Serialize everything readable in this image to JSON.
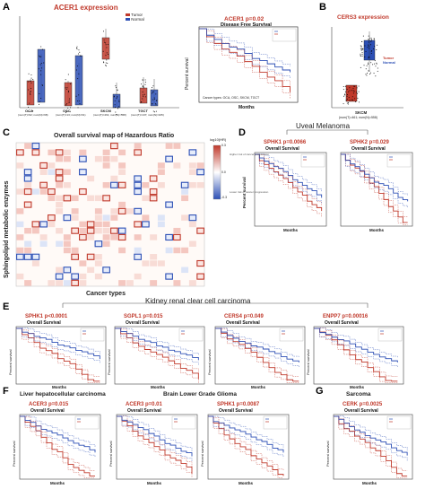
{
  "panels": {
    "A": {
      "letter": "A",
      "box_title": "ACER1 expression",
      "legend": {
        "tumor": "Tumor",
        "normal": "Normal"
      },
      "groups": [
        {
          "name": "OCA",
          "n": "(num(T)=92; num(N)=98)"
        },
        {
          "name": "OSC",
          "n": "(num(T)=13; num(N)=61)"
        },
        {
          "name": "SKCM",
          "n": "(num(T)=461; num(N)=558)"
        },
        {
          "name": "TGCT",
          "n": "(num(T)=137; num(N)=165)"
        }
      ],
      "km_title": "ACER1 p=0.02",
      "km_sub": "Disease Free Survival",
      "km_ylabel": "Percent survival",
      "km_xlabel": "Months",
      "km_note": "Cancer types: OCA, OSC, SKCM, TGCT"
    },
    "B": {
      "letter": "B",
      "title": "CERS3 expression",
      "legend": {
        "tumor": "Tumor",
        "normal": "Normal"
      },
      "group": "SKCM",
      "n": "(num(T)=461; num(N)=558)"
    },
    "C": {
      "letter": "C",
      "title": "Overall survival map of Hazardous Ratio",
      "ylabel": "Sphingolipid metabolic enzymes",
      "xlabel": "Cancer types",
      "legend_title": "log10(HR)",
      "legend_high": "Higher risk of cancer progression",
      "legend_low": "Lower risk of cancer progression",
      "legend_ticks": [
        "0.3",
        "0.0",
        "-0.3"
      ]
    },
    "D": {
      "letter": "D",
      "heading": "Uveal Melanoma",
      "plots": [
        {
          "title": "SPHK1 p=0.0066",
          "sub": "Overall Survival"
        },
        {
          "title": "SPHK2 p=0.029",
          "sub": "Overall Survival"
        }
      ],
      "ylabel": "Percent survival",
      "xlabel": "Months"
    },
    "E": {
      "letter": "E",
      "heading": "Kidney renal clear cell carcinoma",
      "plots": [
        {
          "title": "SPHK1 p<0.0001",
          "sub": "Overall Survival"
        },
        {
          "title": "SGPL1 p=0.015",
          "sub": "Overall Survival"
        },
        {
          "title": "CERS4 p=0.049",
          "sub": "Overall Survival"
        },
        {
          "title": "ENPP7 p=0.00016",
          "sub": "Overall Survival"
        }
      ],
      "ylabel": "Percent survival",
      "xlabel": "Months"
    },
    "F": {
      "letter": "F",
      "heading_left": "Liver hepatocellular carcinoma",
      "heading_right": "Brain Lower Grade Glioma",
      "plots": [
        {
          "title": "ACER3 p=0.015",
          "sub": "Overall Survival"
        },
        {
          "title": "ACER3 p=0.01",
          "sub": "Overall Survival"
        },
        {
          "title": "SPHK1 p=0.0087",
          "sub": "Overall Survival"
        }
      ],
      "ylabel": "Percent survival",
      "xlabel": "Months"
    },
    "G": {
      "letter": "G",
      "heading": "Sarcoma",
      "plots": [
        {
          "title": "CERK p=0.0025",
          "sub": "Overall Survival"
        }
      ],
      "ylabel": "Percent survival",
      "xlabel": "Months"
    }
  },
  "colors": {
    "tumor": "#c0392b",
    "normal": "#2c4fb5",
    "high": "#c0392b",
    "low": "#2c4fb5"
  }
}
